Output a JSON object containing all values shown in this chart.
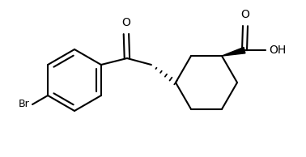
{
  "background_color": "#ffffff",
  "line_color": "#000000",
  "line_width": 1.5,
  "figsize": [
    3.78,
    1.94
  ],
  "dpi": 100,
  "xlim": [
    0,
    3.78
  ],
  "ylim": [
    0,
    1.94
  ]
}
